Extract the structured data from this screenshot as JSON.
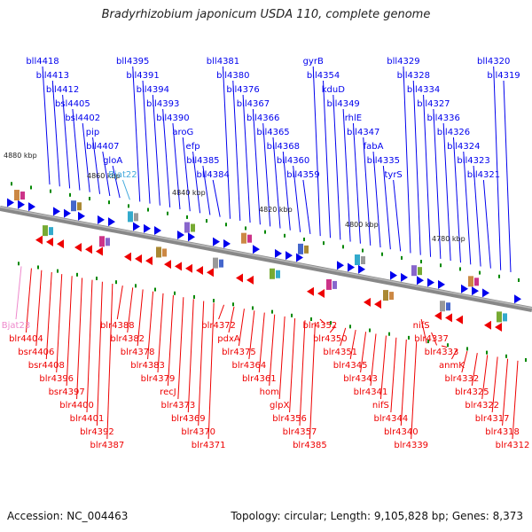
{
  "title": "Bradyrhizobium japonicum USDA 110, complete genome",
  "footer": {
    "accession": "Accession: NC_004463",
    "summary": "Topology: circular; Length: 9,105,828 bp; Genes: 8,373"
  },
  "colors": {
    "forward": "#0000ee",
    "reverse": "#ee0000",
    "rna": "#ee88cc",
    "axis": "#888888",
    "tick": "#008800"
  },
  "kbp_markers": [
    "4880 kbp",
    "4860 kbp",
    "4840 kbp",
    "4820 kbp",
    "4800 kbp",
    "4780 kbp"
  ],
  "top_labels": [
    "bll4418",
    "bll4413",
    "bll4412",
    "bsl4405",
    "bsl4402",
    "pip",
    "bll4407",
    "gloA",
    "Bjat22",
    "bll4395",
    "bll4391",
    "bll4394",
    "bll4393",
    "bll4390",
    "aroG",
    "efp",
    "bll4385",
    "bll4384",
    "bll4381",
    "bll4380",
    "bll4376",
    "bll4367",
    "bll4366",
    "bll4365",
    "bll4368",
    "bll4360",
    "bll4359",
    "gyrB",
    "bll4354",
    "kduD",
    "bll4349",
    "rhlE",
    "bll4347",
    "fabA",
    "bll4335",
    "tyrS",
    "bll4329",
    "bll4328",
    "bll4334",
    "bll4327",
    "bll4336",
    "bll4326",
    "bll4324",
    "bll4323",
    "bll4321",
    "bll4320",
    "bll4319"
  ],
  "bottom_labels": [
    "Bjat23",
    "blr4404",
    "bsr4406",
    "bsr4408",
    "blr4396",
    "bsr4397",
    "blr4400",
    "blr4401",
    "blr4392",
    "blr4387",
    "blr4388",
    "blr4382",
    "blr4378",
    "blr4383",
    "blr4379",
    "recJ",
    "blr4373",
    "blr4369",
    "blr4370",
    "blr4371",
    "blr4372",
    "pdxA",
    "blr4375",
    "blr4364",
    "blr4361",
    "hom",
    "glpX",
    "blr4356",
    "blr4357",
    "blr4385",
    "blr4352",
    "blr4350",
    "blr4351",
    "blr4345",
    "blr4343",
    "blr4341",
    "nifS",
    "blr4344",
    "blr4340",
    "blr4339",
    "nifS",
    "blr4337",
    "blr4333",
    "anmK",
    "blr4332",
    "blr4325",
    "blr4322",
    "blr4317",
    "blr4318",
    "blr4312"
  ]
}
